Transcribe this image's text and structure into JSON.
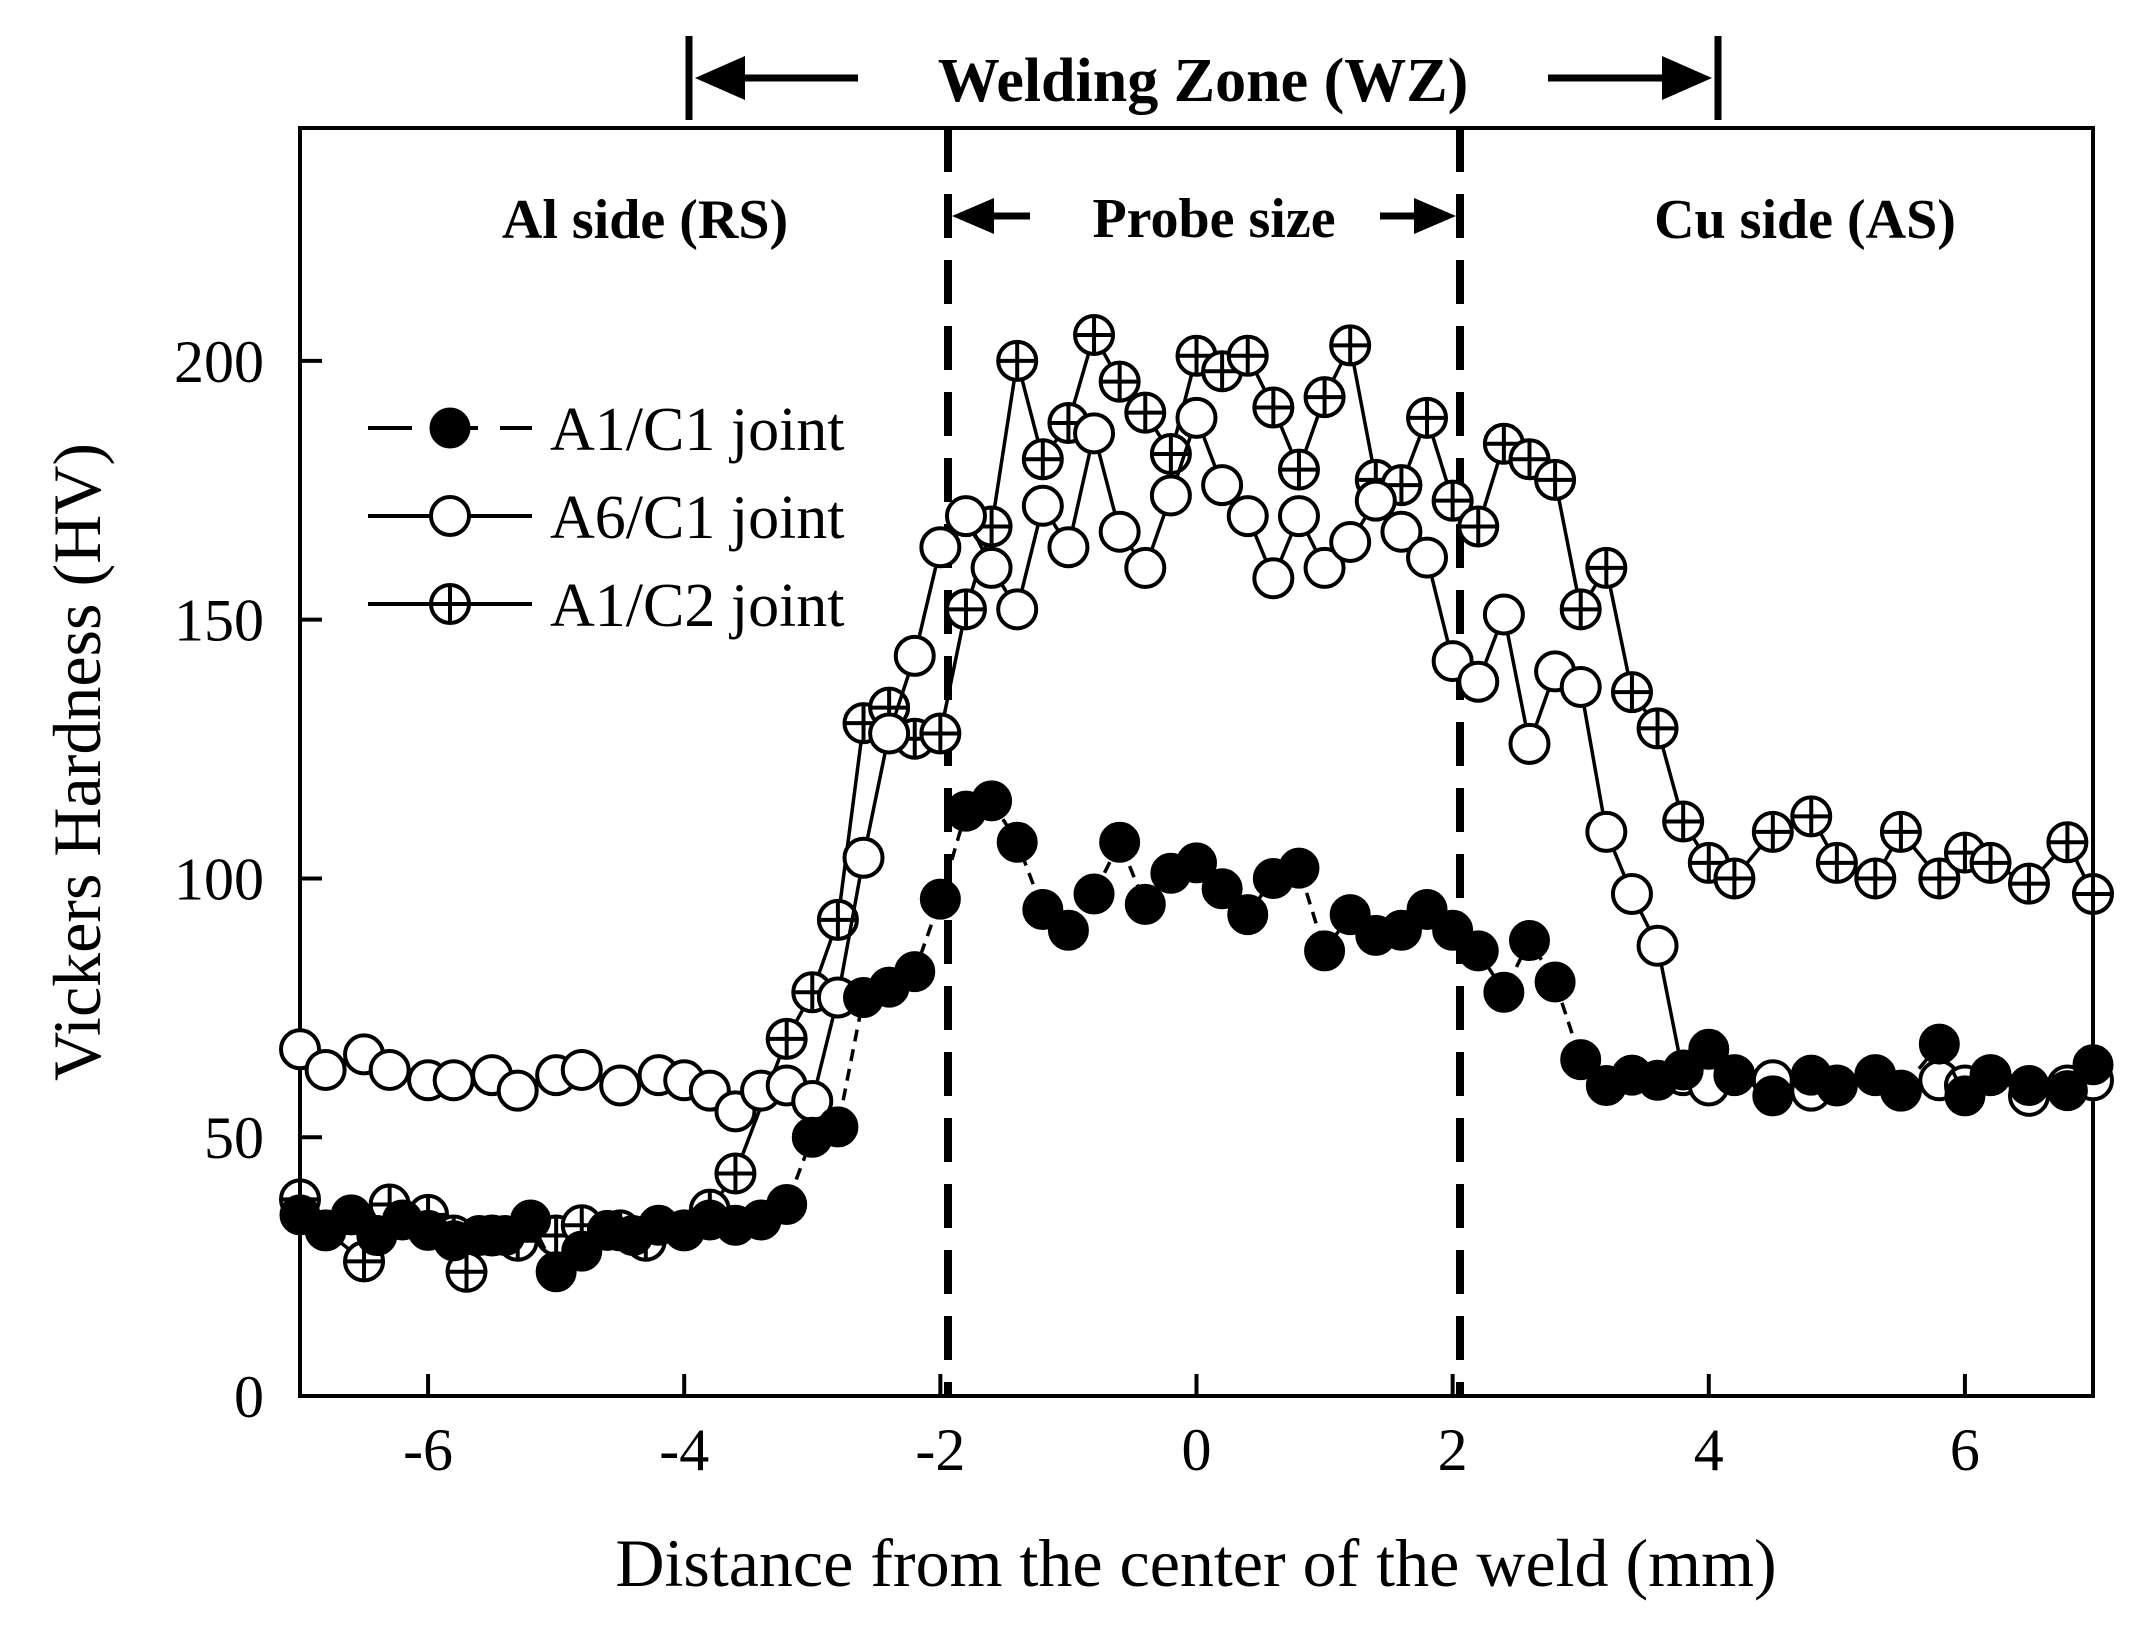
{
  "chart_data": {
    "type": "line",
    "xlabel": "Distance from the center of the weld (mm)",
    "ylabel": "Vickers Hardness (HV)",
    "xlim": [
      -7,
      7
    ],
    "ylim": [
      0,
      245
    ],
    "x_ticks": [
      -6,
      -4,
      -2,
      0,
      2,
      4,
      6
    ],
    "x_tick_labels": [
      "-6",
      "-4",
      "-2",
      "0",
      "2",
      "4",
      "6"
    ],
    "y_ticks": [
      0,
      50,
      100,
      150,
      200
    ],
    "y_tick_labels": [
      "0",
      "50",
      "100",
      "150",
      "200"
    ],
    "grid": false,
    "legend_position": "upper-left",
    "annotations": {
      "welding_zone": {
        "label": "Welding Zone (WZ)",
        "x_start": -4,
        "x_end": 4
      },
      "probe_size": {
        "label": "Probe size",
        "x_start": -2,
        "x_end": 2
      },
      "al_side": "Al side (RS)",
      "cu_side": "Cu side (AS)",
      "dashed_lines_x": [
        -2,
        2
      ]
    },
    "series": [
      {
        "name": "A1/C1 joint",
        "marker": "filled-circle",
        "linestyle": "dashed",
        "points": [
          [
            -7.0,
            35
          ],
          [
            -6.8,
            32
          ],
          [
            -6.6,
            35
          ],
          [
            -6.4,
            31
          ],
          [
            -6.2,
            34
          ],
          [
            -6.0,
            32
          ],
          [
            -5.8,
            30
          ],
          [
            -5.6,
            31
          ],
          [
            -5.4,
            31
          ],
          [
            -5.2,
            34
          ],
          [
            -5.0,
            24
          ],
          [
            -4.8,
            28
          ],
          [
            -4.6,
            32
          ],
          [
            -4.4,
            31
          ],
          [
            -4.2,
            33
          ],
          [
            -4.0,
            32
          ],
          [
            -3.8,
            34
          ],
          [
            -3.6,
            33
          ],
          [
            -3.4,
            34
          ],
          [
            -3.2,
            37
          ],
          [
            -3.0,
            50
          ],
          [
            -2.8,
            52
          ],
          [
            -2.6,
            77
          ],
          [
            -2.4,
            79
          ],
          [
            -2.2,
            82
          ],
          [
            -2.0,
            96
          ],
          [
            -1.8,
            113
          ],
          [
            -1.6,
            115
          ],
          [
            -1.4,
            107
          ],
          [
            -1.2,
            94
          ],
          [
            -1.0,
            90
          ],
          [
            -0.8,
            97
          ],
          [
            -0.6,
            107
          ],
          [
            -0.4,
            95
          ],
          [
            -0.2,
            101
          ],
          [
            0.0,
            103
          ],
          [
            0.2,
            98
          ],
          [
            0.4,
            93
          ],
          [
            0.6,
            100
          ],
          [
            0.8,
            102
          ],
          [
            1.0,
            86
          ],
          [
            1.2,
            93
          ],
          [
            1.4,
            89
          ],
          [
            1.6,
            90
          ],
          [
            1.8,
            94
          ],
          [
            2.0,
            90
          ],
          [
            2.2,
            86
          ],
          [
            2.4,
            78
          ],
          [
            2.6,
            88
          ],
          [
            2.8,
            80
          ],
          [
            3.0,
            65
          ],
          [
            3.2,
            60
          ],
          [
            3.4,
            62
          ],
          [
            3.6,
            61
          ],
          [
            3.8,
            63
          ],
          [
            4.0,
            67
          ],
          [
            4.2,
            62
          ],
          [
            4.5,
            58
          ],
          [
            4.8,
            62
          ],
          [
            5.0,
            60
          ],
          [
            5.3,
            62
          ],
          [
            5.5,
            59
          ],
          [
            5.8,
            68
          ],
          [
            6.0,
            58
          ],
          [
            6.2,
            62
          ],
          [
            6.5,
            60
          ],
          [
            6.8,
            59
          ],
          [
            7.0,
            64
          ]
        ]
      },
      {
        "name": "A6/C1 joint",
        "marker": "open-circle",
        "linestyle": "solid",
        "points": [
          [
            -7.0,
            67
          ],
          [
            -6.8,
            63
          ],
          [
            -6.5,
            66
          ],
          [
            -6.3,
            63
          ],
          [
            -6.0,
            61
          ],
          [
            -5.8,
            61
          ],
          [
            -5.5,
            62
          ],
          [
            -5.3,
            59
          ],
          [
            -5.0,
            62
          ],
          [
            -4.8,
            63
          ],
          [
            -4.5,
            60
          ],
          [
            -4.2,
            62
          ],
          [
            -4.0,
            61
          ],
          [
            -3.8,
            59
          ],
          [
            -3.6,
            55
          ],
          [
            -3.4,
            59
          ],
          [
            -3.2,
            60
          ],
          [
            -3.0,
            57
          ],
          [
            -2.8,
            77
          ],
          [
            -2.6,
            104
          ],
          [
            -2.4,
            128
          ],
          [
            -2.2,
            143
          ],
          [
            -2.0,
            164
          ],
          [
            -1.8,
            170
          ],
          [
            -1.6,
            160
          ],
          [
            -1.4,
            152
          ],
          [
            -1.2,
            172
          ],
          [
            -1.0,
            164
          ],
          [
            -0.8,
            186
          ],
          [
            -0.6,
            167
          ],
          [
            -0.4,
            160
          ],
          [
            -0.2,
            174
          ],
          [
            0.0,
            189
          ],
          [
            0.2,
            176
          ],
          [
            0.4,
            170
          ],
          [
            0.6,
            158
          ],
          [
            0.8,
            170
          ],
          [
            1.0,
            160
          ],
          [
            1.2,
            165
          ],
          [
            1.4,
            173
          ],
          [
            1.6,
            167
          ],
          [
            1.8,
            162
          ],
          [
            2.0,
            142
          ],
          [
            2.2,
            138
          ],
          [
            2.4,
            151
          ],
          [
            2.6,
            126
          ],
          [
            2.8,
            140
          ],
          [
            3.0,
            137
          ],
          [
            3.2,
            109
          ],
          [
            3.4,
            97
          ],
          [
            3.6,
            87
          ],
          [
            3.8,
            62
          ],
          [
            4.0,
            60
          ],
          [
            4.2,
            62
          ],
          [
            4.5,
            61
          ],
          [
            4.8,
            59
          ],
          [
            5.0,
            60
          ],
          [
            5.3,
            62
          ],
          [
            5.5,
            59
          ],
          [
            5.8,
            61
          ],
          [
            6.0,
            60
          ],
          [
            6.2,
            62
          ],
          [
            6.5,
            58
          ],
          [
            6.8,
            60
          ],
          [
            7.0,
            61
          ]
        ]
      },
      {
        "name": "A1/C2 joint",
        "marker": "crossed-circle",
        "linestyle": "solid",
        "points": [
          [
            -7.0,
            38
          ],
          [
            -6.8,
            32
          ],
          [
            -6.5,
            26
          ],
          [
            -6.3,
            37
          ],
          [
            -6.0,
            35
          ],
          [
            -5.8,
            31
          ],
          [
            -5.7,
            24
          ],
          [
            -5.5,
            31
          ],
          [
            -5.3,
            30
          ],
          [
            -5.0,
            31
          ],
          [
            -4.8,
            33
          ],
          [
            -4.5,
            32
          ],
          [
            -4.3,
            30
          ],
          [
            -4.0,
            32
          ],
          [
            -3.8,
            36
          ],
          [
            -3.6,
            43
          ],
          [
            -3.2,
            69
          ],
          [
            -3.0,
            78
          ],
          [
            -2.8,
            92
          ],
          [
            -2.6,
            130
          ],
          [
            -2.4,
            133
          ],
          [
            -2.2,
            127
          ],
          [
            -2.0,
            128
          ],
          [
            -1.8,
            152
          ],
          [
            -1.6,
            168
          ],
          [
            -1.4,
            200
          ],
          [
            -1.2,
            181
          ],
          [
            -1.0,
            188
          ],
          [
            -0.8,
            205
          ],
          [
            -0.6,
            196
          ],
          [
            -0.4,
            190
          ],
          [
            -0.2,
            182
          ],
          [
            0.0,
            201
          ],
          [
            0.2,
            198
          ],
          [
            0.4,
            201
          ],
          [
            0.6,
            191
          ],
          [
            0.8,
            179
          ],
          [
            1.0,
            193
          ],
          [
            1.2,
            203
          ],
          [
            1.4,
            177
          ],
          [
            1.6,
            176
          ],
          [
            1.8,
            189
          ],
          [
            2.0,
            173
          ],
          [
            2.2,
            168
          ],
          [
            2.4,
            184
          ],
          [
            2.6,
            181
          ],
          [
            2.8,
            177
          ],
          [
            3.0,
            152
          ],
          [
            3.2,
            160
          ],
          [
            3.4,
            136
          ],
          [
            3.6,
            129
          ],
          [
            3.8,
            111
          ],
          [
            4.0,
            103
          ],
          [
            4.2,
            100
          ],
          [
            4.5,
            109
          ],
          [
            4.8,
            112
          ],
          [
            5.0,
            103
          ],
          [
            5.3,
            100
          ],
          [
            5.5,
            109
          ],
          [
            5.8,
            100
          ],
          [
            6.0,
            105
          ],
          [
            6.2,
            103
          ],
          [
            6.5,
            99
          ],
          [
            6.8,
            107
          ],
          [
            7.0,
            97
          ]
        ]
      }
    ]
  }
}
